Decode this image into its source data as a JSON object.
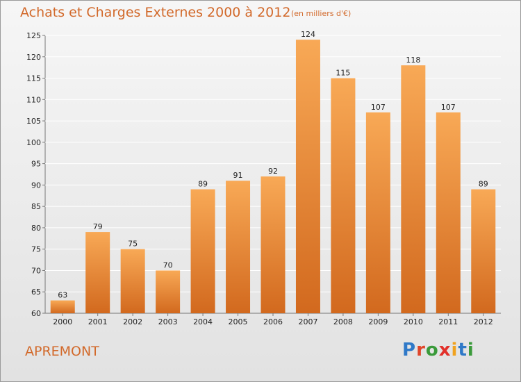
{
  "header": {
    "title": "Achats et Charges Externes 2000 à 2012",
    "subtitle": "(en milliers d'€)"
  },
  "footer": {
    "commune": "APREMONT",
    "brand": "Proxiti",
    "brand_colors": [
      "#2f79c8",
      "#e0462a",
      "#3a9a3a",
      "#e2302a",
      "#f0a21e",
      "#2f79c8",
      "#3a9a3a"
    ]
  },
  "colors": {
    "accent": "#d2692a",
    "bar_top": "#f8a956",
    "bar_bottom": "#d2691e",
    "grid": "#ffffff",
    "axis_text": "#222222"
  },
  "chart_data": {
    "type": "bar",
    "categories": [
      "2000",
      "2001",
      "2002",
      "2003",
      "2004",
      "2005",
      "2006",
      "2007",
      "2008",
      "2009",
      "2010",
      "2011",
      "2012"
    ],
    "values": [
      63,
      79,
      75,
      70,
      89,
      91,
      92,
      124,
      115,
      107,
      118,
      107,
      89
    ],
    "ylim": [
      60,
      125
    ],
    "yticks": [
      60,
      65,
      70,
      75,
      80,
      85,
      90,
      95,
      100,
      105,
      110,
      115,
      120,
      125
    ],
    "data_labels": true,
    "grid": "horizontal"
  }
}
